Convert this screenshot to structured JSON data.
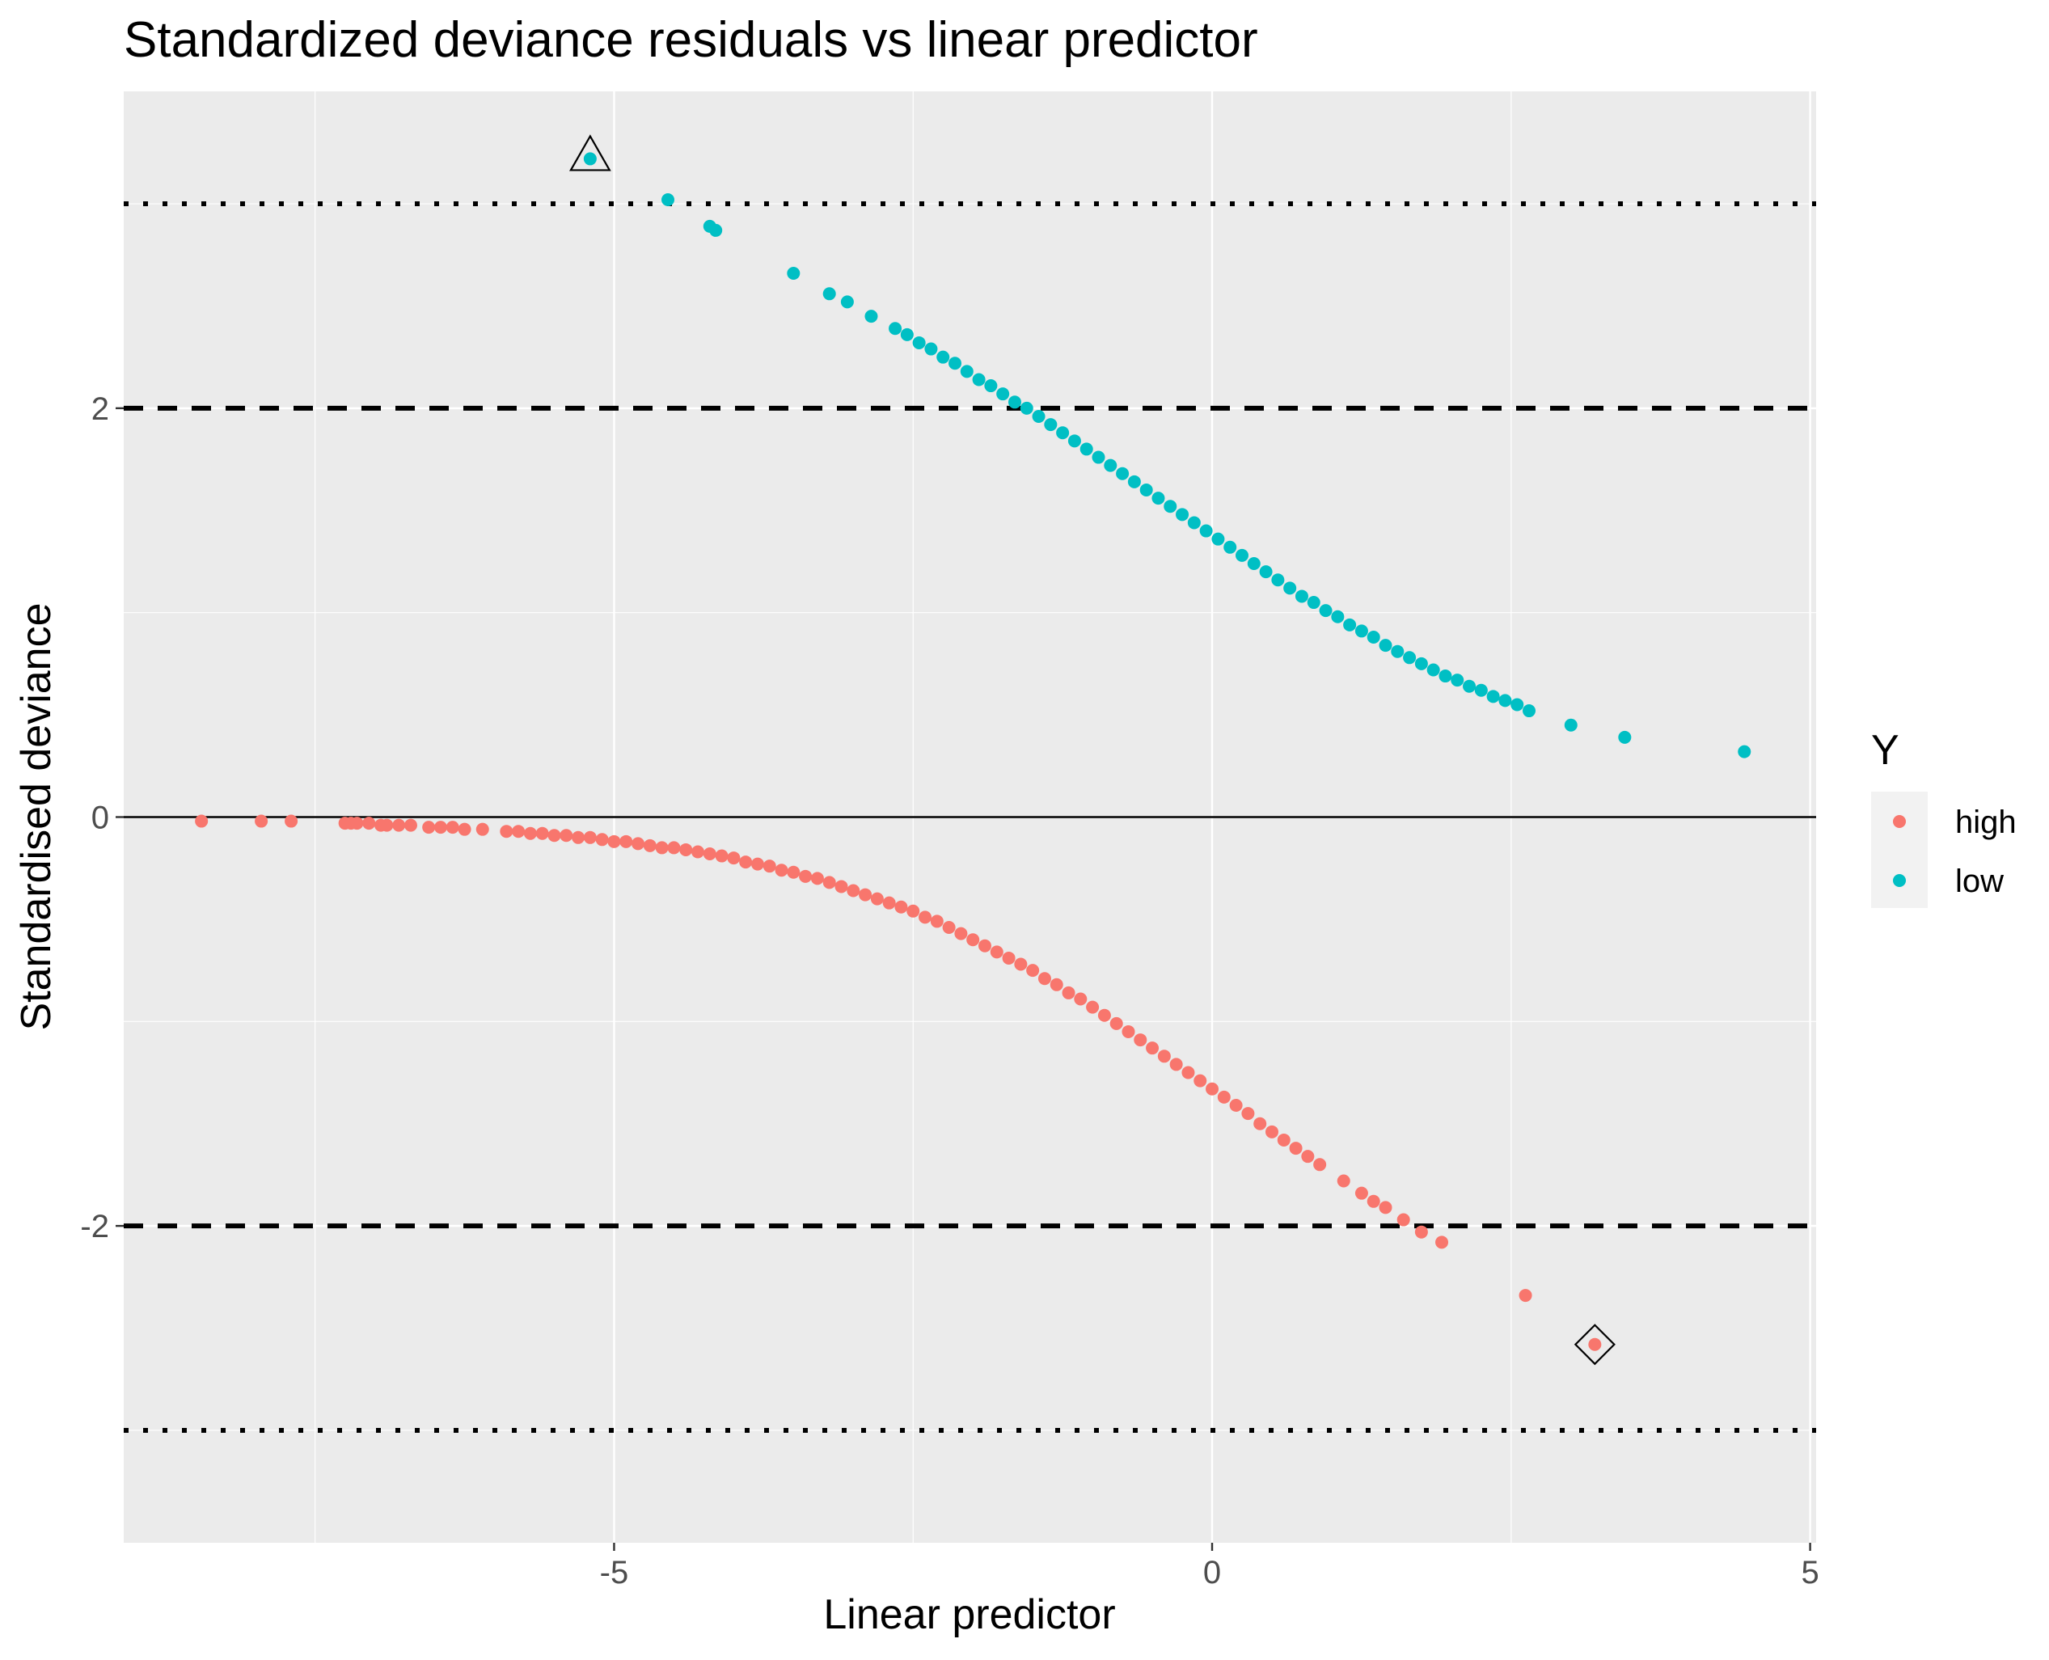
{
  "chart_data": {
    "type": "scatter",
    "title": "Standardized deviance residuals vs linear predictor",
    "xlabel": "Linear predictor",
    "ylabel": "Standardised deviance",
    "xlim": [
      -9.1,
      5.05
    ],
    "ylim": [
      -3.55,
      3.55
    ],
    "x_ticks": [
      -5,
      0,
      5
    ],
    "x_tick_labels": [
      "-5",
      "0",
      "5"
    ],
    "y_ticks": [
      -2,
      0,
      2
    ],
    "y_tick_labels": [
      "-2",
      "0",
      "2"
    ],
    "grid": true,
    "reference_lines": [
      {
        "y": 3,
        "style": "dotted"
      },
      {
        "y": 2,
        "style": "dashed"
      },
      {
        "y": 0,
        "style": "solid"
      },
      {
        "y": -2,
        "style": "dashed"
      },
      {
        "y": -3,
        "style": "dotted"
      }
    ],
    "legend": {
      "title": "Y",
      "placement": "right",
      "entries": [
        {
          "label": "high",
          "color": "#F8766D"
        },
        {
          "label": "low",
          "color": "#00BFC4"
        }
      ]
    },
    "series": [
      {
        "name": "high",
        "color": "#F8766D",
        "points": [
          [
            -8.45,
            -0.02
          ],
          [
            -7.95,
            -0.02
          ],
          [
            -7.7,
            -0.02
          ],
          [
            -7.25,
            -0.03
          ],
          [
            -7.2,
            -0.03
          ],
          [
            -7.15,
            -0.03
          ],
          [
            -7.05,
            -0.03
          ],
          [
            -6.95,
            -0.04
          ],
          [
            -6.9,
            -0.04
          ],
          [
            -6.8,
            -0.04
          ],
          [
            -6.7,
            -0.04
          ],
          [
            -6.55,
            -0.05
          ],
          [
            -6.45,
            -0.05
          ],
          [
            -6.35,
            -0.05
          ],
          [
            -6.25,
            -0.06
          ],
          [
            -6.1,
            -0.06
          ],
          [
            -5.9,
            -0.07
          ],
          [
            -5.8,
            -0.07
          ],
          [
            -5.7,
            -0.08
          ],
          [
            -5.6,
            -0.08
          ],
          [
            -5.5,
            -0.09
          ],
          [
            -5.4,
            -0.09
          ],
          [
            -5.3,
            -0.1
          ],
          [
            -5.2,
            -0.1
          ],
          [
            -5.1,
            -0.11
          ],
          [
            -5.0,
            -0.12
          ],
          [
            -4.9,
            -0.12
          ],
          [
            -4.8,
            -0.13
          ],
          [
            -4.7,
            -0.14
          ],
          [
            -4.6,
            -0.15
          ],
          [
            -4.5,
            -0.15
          ],
          [
            -4.4,
            -0.16
          ],
          [
            -4.3,
            -0.17
          ],
          [
            -4.2,
            -0.18
          ],
          [
            -4.1,
            -0.19
          ],
          [
            -4.0,
            -0.2
          ],
          [
            -3.9,
            -0.22
          ],
          [
            -3.8,
            -0.23
          ],
          [
            -3.7,
            -0.24
          ],
          [
            -3.6,
            -0.26
          ],
          [
            -3.5,
            -0.27
          ],
          [
            -3.4,
            -0.29
          ],
          [
            -3.3,
            -0.3
          ],
          [
            -3.2,
            -0.32
          ],
          [
            -3.1,
            -0.34
          ],
          [
            -3.0,
            -0.36
          ],
          [
            -2.9,
            -0.38
          ],
          [
            -2.8,
            -0.4
          ],
          [
            -2.7,
            -0.42
          ],
          [
            -2.6,
            -0.44
          ],
          [
            -2.5,
            -0.46
          ],
          [
            -2.4,
            -0.49
          ],
          [
            -2.3,
            -0.51
          ],
          [
            -2.2,
            -0.54
          ],
          [
            -2.1,
            -0.57
          ],
          [
            -2.0,
            -0.6
          ],
          [
            -1.9,
            -0.63
          ],
          [
            -1.8,
            -0.66
          ],
          [
            -1.7,
            -0.69
          ],
          [
            -1.6,
            -0.72
          ],
          [
            -1.5,
            -0.75
          ],
          [
            -1.4,
            -0.79
          ],
          [
            -1.3,
            -0.82
          ],
          [
            -1.2,
            -0.86
          ],
          [
            -1.1,
            -0.89
          ],
          [
            -1.0,
            -0.93
          ],
          [
            -0.9,
            -0.97
          ],
          [
            -0.8,
            -1.01
          ],
          [
            -0.7,
            -1.05
          ],
          [
            -0.6,
            -1.09
          ],
          [
            -0.5,
            -1.13
          ],
          [
            -0.4,
            -1.17
          ],
          [
            -0.3,
            -1.21
          ],
          [
            -0.2,
            -1.25
          ],
          [
            -0.1,
            -1.29
          ],
          [
            0.0,
            -1.33
          ],
          [
            0.1,
            -1.37
          ],
          [
            0.2,
            -1.41
          ],
          [
            0.3,
            -1.45
          ],
          [
            0.4,
            -1.5
          ],
          [
            0.5,
            -1.54
          ],
          [
            0.6,
            -1.58
          ],
          [
            0.7,
            -1.62
          ],
          [
            0.8,
            -1.66
          ],
          [
            0.9,
            -1.7
          ],
          [
            1.1,
            -1.78
          ],
          [
            1.25,
            -1.84
          ],
          [
            1.35,
            -1.88
          ],
          [
            1.45,
            -1.91
          ],
          [
            1.6,
            -1.97
          ],
          [
            1.75,
            -2.03
          ],
          [
            1.92,
            -2.08
          ],
          [
            2.62,
            -2.34
          ],
          [
            3.2,
            -2.58
          ]
        ]
      },
      {
        "name": "low",
        "color": "#00BFC4",
        "points": [
          [
            -5.2,
            3.22
          ],
          [
            -4.55,
            3.02
          ],
          [
            -4.2,
            2.89
          ],
          [
            -4.15,
            2.87
          ],
          [
            -3.5,
            2.66
          ],
          [
            -3.2,
            2.56
          ],
          [
            -3.05,
            2.52
          ],
          [
            -2.85,
            2.45
          ],
          [
            -2.65,
            2.39
          ],
          [
            -2.55,
            2.36
          ],
          [
            -2.45,
            2.32
          ],
          [
            -2.35,
            2.29
          ],
          [
            -2.25,
            2.25
          ],
          [
            -2.15,
            2.22
          ],
          [
            -2.05,
            2.18
          ],
          [
            -1.95,
            2.14
          ],
          [
            -1.85,
            2.11
          ],
          [
            -1.75,
            2.07
          ],
          [
            -1.65,
            2.03
          ],
          [
            -1.55,
            2.0
          ],
          [
            -1.45,
            1.96
          ],
          [
            -1.35,
            1.92
          ],
          [
            -1.25,
            1.88
          ],
          [
            -1.15,
            1.84
          ],
          [
            -1.05,
            1.8
          ],
          [
            -0.95,
            1.76
          ],
          [
            -0.85,
            1.72
          ],
          [
            -0.75,
            1.68
          ],
          [
            -0.65,
            1.64
          ],
          [
            -0.55,
            1.6
          ],
          [
            -0.45,
            1.56
          ],
          [
            -0.35,
            1.52
          ],
          [
            -0.25,
            1.48
          ],
          [
            -0.15,
            1.44
          ],
          [
            -0.05,
            1.4
          ],
          [
            0.05,
            1.36
          ],
          [
            0.15,
            1.32
          ],
          [
            0.25,
            1.28
          ],
          [
            0.35,
            1.24
          ],
          [
            0.45,
            1.2
          ],
          [
            0.55,
            1.16
          ],
          [
            0.65,
            1.12
          ],
          [
            0.75,
            1.08
          ],
          [
            0.85,
            1.05
          ],
          [
            0.95,
            1.01
          ],
          [
            1.05,
            0.98
          ],
          [
            1.15,
            0.94
          ],
          [
            1.25,
            0.91
          ],
          [
            1.35,
            0.88
          ],
          [
            1.45,
            0.84
          ],
          [
            1.55,
            0.81
          ],
          [
            1.65,
            0.78
          ],
          [
            1.75,
            0.75
          ],
          [
            1.85,
            0.72
          ],
          [
            1.95,
            0.69
          ],
          [
            2.05,
            0.67
          ],
          [
            2.15,
            0.64
          ],
          [
            2.25,
            0.62
          ],
          [
            2.35,
            0.59
          ],
          [
            2.45,
            0.57
          ],
          [
            2.55,
            0.55
          ],
          [
            2.65,
            0.52
          ],
          [
            3.0,
            0.45
          ],
          [
            3.45,
            0.39
          ],
          [
            4.45,
            0.32
          ]
        ]
      }
    ],
    "highlighted_points": [
      {
        "x": -5.2,
        "y": 3.22,
        "marker": "triangle",
        "series": "low"
      },
      {
        "x": 3.2,
        "y": -2.58,
        "marker": "diamond",
        "series": "high"
      }
    ]
  }
}
